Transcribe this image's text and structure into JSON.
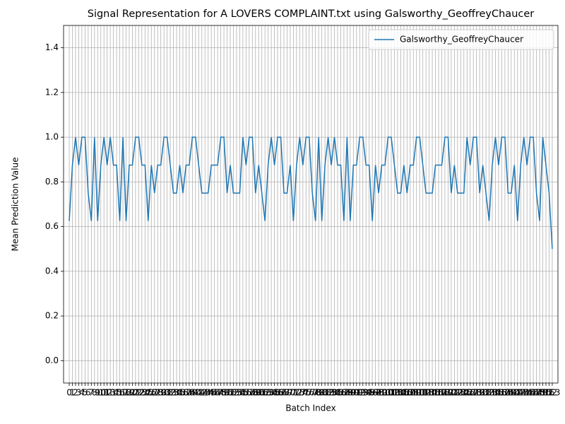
{
  "chart_data": {
    "type": "line",
    "title": "Signal Representation for A LOVERS COMPLAINT.txt using Galsworthy_GeoffreyChaucer",
    "xlabel": "Batch Index",
    "ylabel": "Mean Prediction Value",
    "x": [
      0,
      1,
      2,
      3,
      4,
      5,
      6,
      7,
      8,
      9,
      10,
      11,
      12,
      13,
      14,
      15,
      16,
      17,
      18,
      19,
      20,
      21,
      22,
      23,
      24,
      25,
      26,
      27,
      28,
      29,
      30,
      31,
      32,
      33,
      34,
      35,
      36,
      37,
      38,
      39,
      40,
      41,
      42,
      43,
      44,
      45,
      46,
      47,
      48,
      49,
      50,
      51,
      52,
      53,
      54,
      55,
      56,
      57,
      58,
      59,
      60,
      61,
      62,
      63,
      64,
      65,
      66,
      67,
      68,
      69,
      70,
      71,
      72,
      73,
      74,
      75,
      76,
      77,
      78,
      79,
      80,
      81,
      82,
      83,
      84,
      85,
      86,
      87,
      88,
      89,
      90,
      91,
      92,
      93,
      94,
      95,
      96,
      97,
      98,
      99,
      100,
      101,
      102,
      103,
      104,
      105,
      106,
      107,
      108,
      109,
      110,
      111,
      112,
      113,
      114,
      115,
      116,
      117,
      118,
      119,
      120,
      121,
      122,
      123,
      124,
      125,
      126,
      127,
      128,
      129,
      130,
      131,
      132,
      133,
      134,
      135,
      136,
      137,
      138,
      139,
      140,
      141,
      142,
      143,
      144,
      145,
      146,
      147,
      148,
      149,
      150,
      151,
      152,
      153
    ],
    "series": [
      {
        "name": "Galsworthy_GeoffreyChaucer",
        "color": "#1f77b4",
        "values": [
          0.625,
          0.875,
          1.0,
          0.875,
          1.0,
          1.0,
          0.75,
          0.625,
          1.0,
          0.625,
          0.875,
          1.0,
          0.875,
          1.0,
          0.875,
          0.875,
          0.625,
          1.0,
          0.625,
          0.875,
          0.875,
          1.0,
          1.0,
          0.875,
          0.875,
          0.625,
          0.875,
          0.75,
          0.875,
          0.875,
          1.0,
          1.0,
          0.875,
          0.75,
          0.75,
          0.875,
          0.75,
          0.875,
          0.875,
          1.0,
          1.0,
          0.875,
          0.75,
          0.75,
          0.75,
          0.875,
          0.875,
          0.875,
          1.0,
          1.0,
          0.75,
          0.875,
          0.75,
          0.75,
          0.75,
          1.0,
          0.875,
          1.0,
          1.0,
          0.75,
          0.875,
          0.75,
          0.625,
          0.875,
          1.0,
          0.875,
          1.0,
          1.0,
          0.75,
          0.75,
          0.875,
          0.625,
          0.875,
          1.0,
          0.875,
          1.0,
          1.0,
          0.75,
          0.625,
          1.0,
          0.625,
          0.875,
          1.0,
          0.875,
          1.0,
          0.875,
          0.875,
          0.625,
          1.0,
          0.625,
          0.875,
          0.875,
          1.0,
          1.0,
          0.875,
          0.875,
          0.625,
          0.875,
          0.75,
          0.875,
          0.875,
          1.0,
          1.0,
          0.875,
          0.75,
          0.75,
          0.875,
          0.75,
          0.875,
          0.875,
          1.0,
          1.0,
          0.875,
          0.75,
          0.75,
          0.75,
          0.875,
          0.875,
          0.875,
          1.0,
          1.0,
          0.75,
          0.875,
          0.75,
          0.75,
          0.75,
          1.0,
          0.875,
          1.0,
          1.0,
          0.75,
          0.875,
          0.75,
          0.625,
          0.875,
          1.0,
          0.875,
          1.0,
          1.0,
          0.75,
          0.75,
          0.875,
          0.625,
          0.875,
          1.0,
          0.875,
          1.0,
          1.0,
          0.75,
          0.625,
          1.0,
          0.875,
          0.75,
          0.5
        ]
      }
    ],
    "xlim": [
      -1.8,
      154.8
    ],
    "xticks": [
      0,
      1,
      2,
      3,
      4,
      5,
      6,
      7,
      8,
      9,
      10,
      11,
      12,
      13,
      14,
      15,
      16,
      17,
      18,
      19,
      20,
      21,
      22,
      23,
      24,
      25,
      26,
      27,
      28,
      29,
      30,
      31,
      32,
      33,
      34,
      35,
      36,
      37,
      38,
      39,
      40,
      41,
      42,
      43,
      44,
      45,
      46,
      47,
      48,
      49,
      50,
      51,
      52,
      53,
      54,
      55,
      56,
      57,
      58,
      59,
      60,
      61,
      62,
      63,
      64,
      65,
      66,
      67,
      68,
      69,
      70,
      71,
      72,
      73,
      74,
      75,
      76,
      77,
      78,
      79,
      80,
      81,
      82,
      83,
      84,
      85,
      86,
      87,
      88,
      89,
      90,
      91,
      92,
      93,
      94,
      95,
      96,
      97,
      98,
      99,
      100,
      101,
      102,
      103,
      104,
      105,
      106,
      107,
      108,
      109,
      110,
      111,
      112,
      113,
      114,
      115,
      116,
      117,
      118,
      119,
      120,
      121,
      122,
      123,
      124,
      125,
      126,
      127,
      128,
      129,
      130,
      131,
      132,
      133,
      134,
      135,
      136,
      137,
      138,
      139,
      140,
      141,
      142,
      143,
      144,
      145,
      146,
      147,
      148,
      149,
      150,
      151,
      152,
      153
    ],
    "ylim": [
      -0.1,
      1.5
    ],
    "yticks": [
      {
        "value": 0,
        "label": "0.0"
      },
      0.2,
      0.4,
      0.6,
      0.8,
      {
        "value": 1,
        "label": "1.0"
      },
      1.2,
      1.4
    ],
    "grid": true,
    "legend": "upper right"
  }
}
